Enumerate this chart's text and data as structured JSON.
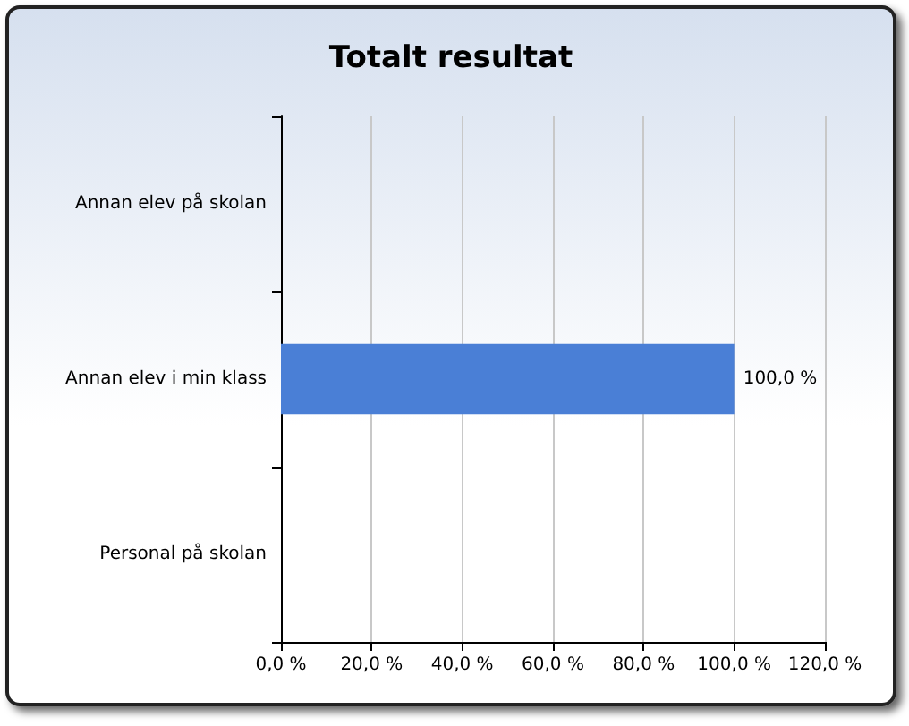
{
  "chart_data": {
    "type": "bar",
    "orientation": "horizontal",
    "title": "Totalt resultat",
    "categories": [
      "Annan elev på skolan",
      "Annan elev i min klass",
      "Personal på skolan"
    ],
    "values": [
      0,
      100,
      0
    ],
    "value_labels": [
      null,
      "100,0 %",
      null
    ],
    "color": "#4a7fd6",
    "xlim": [
      0,
      120
    ],
    "xticks": [
      {
        "value": 0,
        "label": "0,0 %"
      },
      {
        "value": 20,
        "label": "20,0 %"
      },
      {
        "value": 40,
        "label": "40,0 %"
      },
      {
        "value": 60,
        "label": "60,0 %"
      },
      {
        "value": 80,
        "label": "80,0 %"
      },
      {
        "value": 100,
        "label": "100,0 %"
      },
      {
        "value": 120,
        "label": "120,0 %"
      }
    ],
    "grid": "x"
  }
}
